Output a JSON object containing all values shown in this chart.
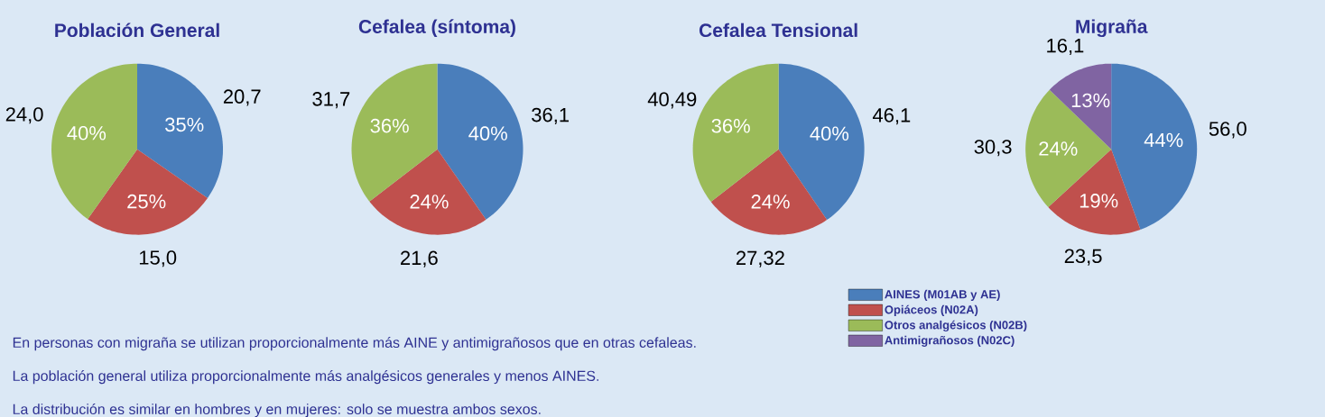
{
  "chart_data": [
    {
      "type": "pie",
      "title": "Población General",
      "categories": [
        null,
        null,
        null
      ],
      "values": [
        20.7,
        15.0,
        24.0
      ],
      "colors": [
        "#4a7ebb",
        "#c0504d",
        "#9bbb59"
      ],
      "value_labels": [
        "20,7",
        "15,0",
        "24,0"
      ],
      "legend": false,
      "annotations": [
        "35%",
        "25%",
        "40%",
        "En personas con migraña se utilizan proporcionalmente más AINE y antimigrañosos que en otras cefaleas.",
        "La población general utiliza proporcionalmente más analgésicos generales y menos AINES.",
        "La distribución es similar en hombres y en mujeres: solo se muestra ambos sexos."
      ]
    },
    {
      "type": "pie",
      "title": "Cefalea (síntoma)",
      "categories": [
        null,
        null,
        null
      ],
      "values": [
        36.1,
        21.6,
        31.7
      ],
      "colors": [
        "#4a7ebb",
        "#c0504d",
        "#9bbb59"
      ],
      "value_labels": [
        "36,1",
        "21,6",
        "31,7"
      ],
      "legend": false,
      "annotations": [
        "40%",
        "24%",
        "36%"
      ]
    },
    {
      "type": "pie",
      "title": "Cefalea Tensional",
      "categories": [
        null,
        null,
        null
      ],
      "values": [
        46.1,
        27.32,
        40.49
      ],
      "colors": [
        "#4a7ebb",
        "#c0504d",
        "#9bbb59"
      ],
      "value_labels": [
        "46,1",
        "27,32",
        "40,49"
      ],
      "legend": false,
      "annotations": [
        "40%",
        "24%",
        "36%"
      ]
    },
    {
      "type": "pie",
      "title": "Migraña",
      "categories": [
        "AINES (M01AB y AE)",
        "Opiáceos (N02A)",
        "Otros analgésicos (N02B)",
        "Antimigrañosos (N02C)"
      ],
      "values": [
        56.0,
        23.5,
        30.3,
        16.1
      ],
      "colors": [
        "#4a7ebb",
        "#c0504d",
        "#9bbb59",
        "#8064a2"
      ],
      "value_labels": [
        "56,0",
        "23,5",
        "30,3",
        "16,1"
      ],
      "legend": "bottom left",
      "annotations": [
        "44%",
        "19%",
        "24%",
        "13%"
      ]
    }
  ]
}
